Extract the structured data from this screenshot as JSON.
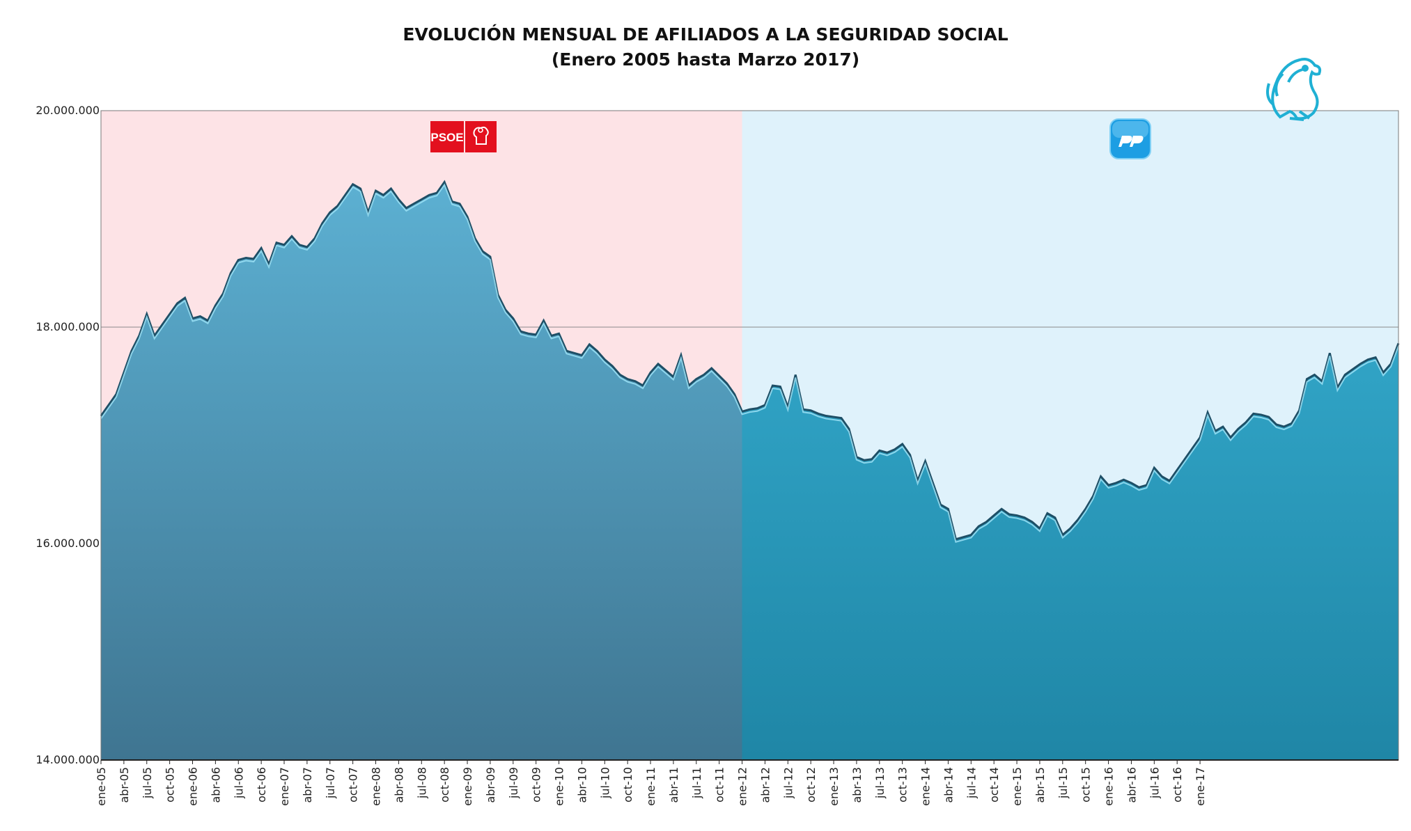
{
  "chart_data": {
    "type": "area",
    "title": "EVOLUCIÓN MENSUAL DE AFILIADOS A LA SEGURIDAD SOCIAL",
    "subtitle": "(Enero 2005 hasta Marzo 2017)",
    "xlabel": "",
    "ylabel": "",
    "ylim": [
      14000000,
      20000000
    ],
    "yticks": [
      14000000,
      16000000,
      18000000,
      20000000
    ],
    "ytick_labels": [
      "14.000.000",
      "16.000.000",
      "18.000.000",
      "20.000.000"
    ],
    "grid": true,
    "x_start": "ene-05",
    "x_end": "mar-17",
    "xtick_labels": [
      "ene-05",
      "abr-05",
      "jul-05",
      "oct-05",
      "ene-06",
      "abr-06",
      "jul-06",
      "oct-06",
      "ene-07",
      "abr-07",
      "jul-07",
      "oct-07",
      "ene-08",
      "abr-08",
      "jul-08",
      "oct-08",
      "ene-09",
      "abr-09",
      "jul-09",
      "oct-09",
      "ene-10",
      "abr-10",
      "jul-10",
      "oct-10",
      "ene-11",
      "abr-11",
      "jul-11",
      "oct-11",
      "ene-12",
      "abr-12",
      "jul-12",
      "oct-12",
      "ene-13",
      "abr-13",
      "jul-13",
      "oct-13",
      "ene-14",
      "abr-14",
      "jul-14",
      "oct-14",
      "ene-15",
      "abr-15",
      "jul-15",
      "oct-15",
      "ene-16",
      "abr-16",
      "jul-16",
      "oct-16",
      "ene-17"
    ],
    "regions": [
      {
        "name": "PSOE",
        "from": "ene-05",
        "to": "dic-11",
        "color": "#fde3e6"
      },
      {
        "name": "PP",
        "from": "ene-12",
        "to": "mar-17",
        "color": "#dff2fb"
      }
    ],
    "series": [
      {
        "values": [
          17180000,
          17280000,
          17380000,
          17580000,
          17780000,
          17920000,
          18120000,
          17920000,
          18020000,
          18120000,
          18220000,
          18270000,
          18080000,
          18100000,
          18060000,
          18200000,
          18310000,
          18500000,
          18620000,
          18640000,
          18630000,
          18730000,
          18580000,
          18780000,
          18760000,
          18840000,
          18760000,
          18740000,
          18820000,
          18960000,
          19060000,
          19120000,
          19220000,
          19320000,
          19280000,
          19060000,
          19260000,
          19220000,
          19280000,
          19180000,
          19100000,
          19140000,
          19180000,
          19220000,
          19240000,
          19340000,
          19160000,
          19140000,
          19020000,
          18820000,
          18700000,
          18650000,
          18300000,
          18160000,
          18080000,
          17960000,
          17940000,
          17930000,
          18060000,
          17920000,
          17940000,
          17780000,
          17760000,
          17740000,
          17840000,
          17780000,
          17700000,
          17640000,
          17560000,
          17520000,
          17500000,
          17460000,
          17580000,
          17660000,
          17600000,
          17540000,
          17740000,
          17460000,
          17520000,
          17560000,
          17620000,
          17550000,
          17480000,
          17380000,
          17220000,
          17240000,
          17250000,
          17280000,
          17460000,
          17450000,
          17260000,
          17560000,
          17240000,
          17230000,
          17200000,
          17180000,
          17170000,
          17160000,
          17060000,
          16800000,
          16770000,
          16780000,
          16860000,
          16840000,
          16870000,
          16920000,
          16820000,
          16580000,
          16760000,
          16560000,
          16360000,
          16320000,
          16040000,
          16060000,
          16080000,
          16160000,
          16200000,
          16260000,
          16320000,
          16270000,
          16260000,
          16240000,
          16200000,
          16140000,
          16280000,
          16240000,
          16080000,
          16140000,
          16220000,
          16320000,
          16440000,
          16620000,
          16540000,
          16560000,
          16590000,
          16560000,
          16520000,
          16540000,
          16700000,
          16620000,
          16580000,
          16680000,
          16780000,
          16880000,
          16980000,
          17210000,
          17040000,
          17080000,
          16980000,
          17060000,
          17120000,
          17200000,
          17190000,
          17170000,
          17100000,
          17080000,
          17110000,
          17230000,
          17520000,
          17560000,
          17500000,
          17760000,
          17440000,
          17560000,
          17610000,
          17660000,
          17700000,
          17720000,
          17580000,
          17660000,
          17850000
        ]
      }
    ]
  },
  "logos": {
    "psoe_text": "PSOE",
    "psoe_icon": "fist-and-rose-icon",
    "pp_icon": "pp-logo-icon",
    "griffin_icon": "griffin-icon"
  },
  "colors": {
    "psoe_region": "#fde3e6",
    "pp_region": "#dff2fb",
    "area_psoe": "#4e98b8",
    "area_pp": "#2ea6c8",
    "psoe_red": "#e3101e",
    "pp_blue": "#1d9ee3"
  }
}
